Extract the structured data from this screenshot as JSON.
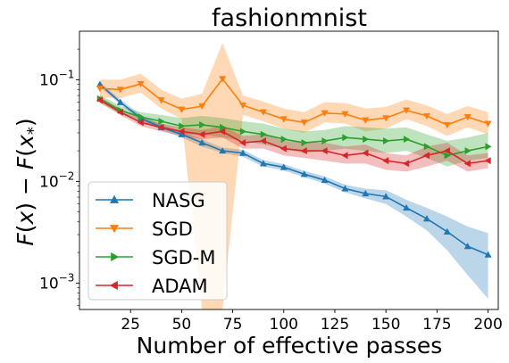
{
  "chart_data": {
    "type": "line",
    "title": "fashionmnist",
    "xlabel": "Number of effective passes",
    "ylabel_html": "F(x) − F(x*)",
    "xlim": [
      0,
      205
    ],
    "ylim": [
      0.00055,
      0.3
    ],
    "yscale": "log",
    "xticks": [
      25,
      50,
      75,
      100,
      125,
      150,
      175,
      200
    ],
    "yticks": [
      {
        "value": 0.001,
        "base": "10",
        "exp": "−3"
      },
      {
        "value": 0.01,
        "base": "10",
        "exp": "−2"
      },
      {
        "value": 0.1,
        "base": "10",
        "exp": "−1"
      }
    ],
    "x": [
      10,
      20,
      30,
      40,
      50,
      60,
      70,
      80,
      90,
      100,
      110,
      120,
      130,
      140,
      150,
      160,
      170,
      180,
      190,
      200
    ],
    "legend_position": "lower-left",
    "series": [
      {
        "name": "NASG",
        "color": "#1f77b4",
        "marker": "triangle-up",
        "values": [
          0.09,
          0.06,
          0.042,
          0.034,
          0.029,
          0.024,
          0.02,
          0.019,
          0.015,
          0.0138,
          0.0118,
          0.0103,
          0.0085,
          0.0076,
          0.0071,
          0.0055,
          0.0043,
          0.0032,
          0.0023,
          0.0019
        ],
        "lower": [
          0.085,
          0.057,
          0.04,
          0.032,
          0.027,
          0.022,
          0.019,
          0.0175,
          0.014,
          0.0128,
          0.011,
          0.0095,
          0.0078,
          0.0068,
          0.006,
          0.0045,
          0.0033,
          0.0021,
          0.0012,
          0.0007
        ],
        "upper": [
          0.095,
          0.064,
          0.045,
          0.036,
          0.031,
          0.026,
          0.0215,
          0.0205,
          0.0162,
          0.0148,
          0.0127,
          0.0112,
          0.0093,
          0.0085,
          0.0082,
          0.0066,
          0.0055,
          0.0045,
          0.0036,
          0.0031
        ]
      },
      {
        "name": "SGD",
        "color": "#ff7f0e",
        "marker": "triangle-down",
        "values": [
          0.082,
          0.08,
          0.091,
          0.063,
          0.051,
          0.055,
          0.102,
          0.056,
          0.048,
          0.041,
          0.038,
          0.047,
          0.046,
          0.04,
          0.042,
          0.05,
          0.044,
          0.036,
          0.043,
          0.037
        ],
        "lower": [
          0.067,
          0.066,
          0.075,
          0.052,
          0.041,
          0.0001,
          0.0001,
          0.045,
          0.039,
          0.033,
          0.03,
          0.038,
          0.037,
          0.031,
          0.033,
          0.041,
          0.035,
          0.028,
          0.034,
          0.029
        ],
        "upper": [
          0.1,
          0.1,
          0.115,
          0.08,
          0.065,
          0.073,
          0.23,
          0.07,
          0.061,
          0.052,
          0.048,
          0.06,
          0.059,
          0.052,
          0.054,
          0.064,
          0.056,
          0.046,
          0.055,
          0.048
        ]
      },
      {
        "name": "SGD-M",
        "color": "#2ca02c",
        "marker": "triangle-right",
        "values": [
          0.065,
          0.05,
          0.043,
          0.039,
          0.035,
          0.036,
          0.034,
          0.031,
          0.029,
          0.026,
          0.024,
          0.025,
          0.027,
          0.026,
          0.025,
          0.026,
          0.022,
          0.018,
          0.02,
          0.022
        ],
        "lower": [
          0.06,
          0.046,
          0.039,
          0.034,
          0.029,
          0.029,
          0.027,
          0.025,
          0.023,
          0.021,
          0.019,
          0.02,
          0.021,
          0.02,
          0.019,
          0.02,
          0.017,
          0.014,
          0.016,
          0.017
        ],
        "upper": [
          0.071,
          0.055,
          0.048,
          0.045,
          0.042,
          0.044,
          0.042,
          0.039,
          0.037,
          0.033,
          0.031,
          0.032,
          0.035,
          0.034,
          0.033,
          0.034,
          0.029,
          0.025,
          0.027,
          0.03
        ]
      },
      {
        "name": "ADAM",
        "color": "#d62728",
        "marker": "triangle-left",
        "values": [
          0.063,
          0.048,
          0.038,
          0.034,
          0.031,
          0.029,
          0.031,
          0.024,
          0.025,
          0.021,
          0.02,
          0.02,
          0.018,
          0.019,
          0.016,
          0.015,
          0.018,
          0.02,
          0.015,
          0.016
        ],
        "lower": [
          0.059,
          0.045,
          0.035,
          0.031,
          0.028,
          0.026,
          0.027,
          0.021,
          0.021,
          0.018,
          0.017,
          0.016,
          0.015,
          0.015,
          0.013,
          0.0125,
          0.014,
          0.016,
          0.0125,
          0.0135
        ],
        "upper": [
          0.068,
          0.052,
          0.042,
          0.037,
          0.034,
          0.032,
          0.035,
          0.028,
          0.029,
          0.025,
          0.024,
          0.024,
          0.022,
          0.023,
          0.019,
          0.018,
          0.022,
          0.024,
          0.018,
          0.019
        ]
      }
    ]
  }
}
